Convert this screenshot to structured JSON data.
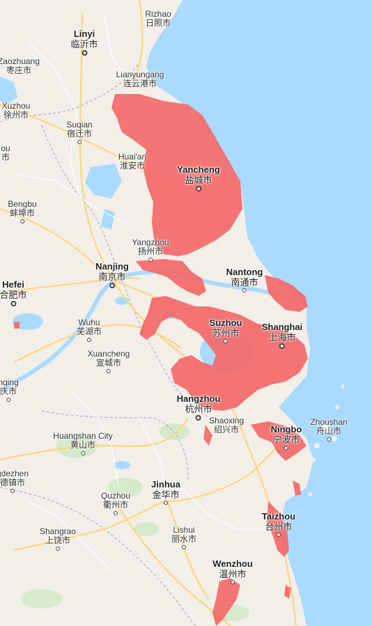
{
  "colors": {
    "land": "#f2efe9",
    "sea": "#aadaff",
    "flood_zone": "#f46a6a",
    "highway": "#fbd77b",
    "road": "#ffffff",
    "lake": "#aadaff",
    "park": "#cfe8c4",
    "province_border": "#b9a6c9"
  },
  "cities": [
    {
      "id": "rizhao",
      "en": "Rizhao",
      "zh": "日照市",
      "major": false
    },
    {
      "id": "linyi",
      "en": "Linyi",
      "zh": "临沂市",
      "major": true
    },
    {
      "id": "zaozhuang",
      "en": "Zaozhuang",
      "zh": "枣庄市",
      "major": false
    },
    {
      "id": "lianyungang",
      "en": "Lianyungang",
      "zh": "连云港市",
      "major": false
    },
    {
      "id": "xuzhou",
      "en": "Xuzhou",
      "zh": "徐州市",
      "major": false
    },
    {
      "id": "suqian",
      "en": "Suqian",
      "zh": "宿迁市",
      "major": false
    },
    {
      "id": "bozhou",
      "en": "ou",
      "zh": "市",
      "major": false
    },
    {
      "id": "huaian",
      "en": "Huai'an",
      "zh": "淮安市",
      "major": false
    },
    {
      "id": "yancheng",
      "en": "Yancheng",
      "zh": "盐城市",
      "major": true
    },
    {
      "id": "bengbu",
      "en": "Bengbu",
      "zh": "蚌埠市",
      "major": false
    },
    {
      "id": "yangzhou",
      "en": "Yangzhou",
      "zh": "扬州市",
      "major": false
    },
    {
      "id": "nanjing",
      "en": "Nanjing",
      "zh": "南京市",
      "major": true
    },
    {
      "id": "nantong",
      "en": "Nantong",
      "zh": "南通市",
      "major": true
    },
    {
      "id": "hefei",
      "en": "Hefei",
      "zh": "合肥市",
      "major": true
    },
    {
      "id": "wuhu",
      "en": "Wuhu",
      "zh": "芜湖市",
      "major": false
    },
    {
      "id": "suzhou",
      "en": "Suzhou",
      "zh": "苏州市",
      "major": true
    },
    {
      "id": "shanghai",
      "en": "Shanghai",
      "zh": "上海市",
      "major": true
    },
    {
      "id": "xuancheng",
      "en": "Xuancheng",
      "zh": "宣城市",
      "major": false
    },
    {
      "id": "anqing",
      "en": "nqing",
      "zh": "庆市",
      "major": false
    },
    {
      "id": "hangzhou",
      "en": "Hangzhou",
      "zh": "杭州市",
      "major": true
    },
    {
      "id": "shaoxing",
      "en": "Shaoxing",
      "zh": "绍兴市",
      "major": false
    },
    {
      "id": "ningbo",
      "en": "Ningbo",
      "zh": "宁波市",
      "major": true
    },
    {
      "id": "zhoushan",
      "en": "Zhoushan",
      "zh": "舟山市",
      "major": false
    },
    {
      "id": "huangshan",
      "en": "Huangshan City",
      "zh": "黄山市",
      "major": false
    },
    {
      "id": "jingdezhen",
      "en": "gdezhen",
      "zh": "德镇市",
      "major": false
    },
    {
      "id": "jinhua",
      "en": "Jinhua",
      "zh": "金华市",
      "major": true
    },
    {
      "id": "quzhou",
      "en": "Quzhou",
      "zh": "衢州市",
      "major": false
    },
    {
      "id": "taizhou",
      "en": "Taizhou",
      "zh": "台州市",
      "major": true
    },
    {
      "id": "shangrao",
      "en": "Shangrao",
      "zh": "上饶市",
      "major": false
    },
    {
      "id": "lishui",
      "en": "Lishui",
      "zh": "丽水市",
      "major": false
    },
    {
      "id": "wenzhou",
      "en": "Wenzhou",
      "zh": "温州市",
      "major": true
    }
  ]
}
